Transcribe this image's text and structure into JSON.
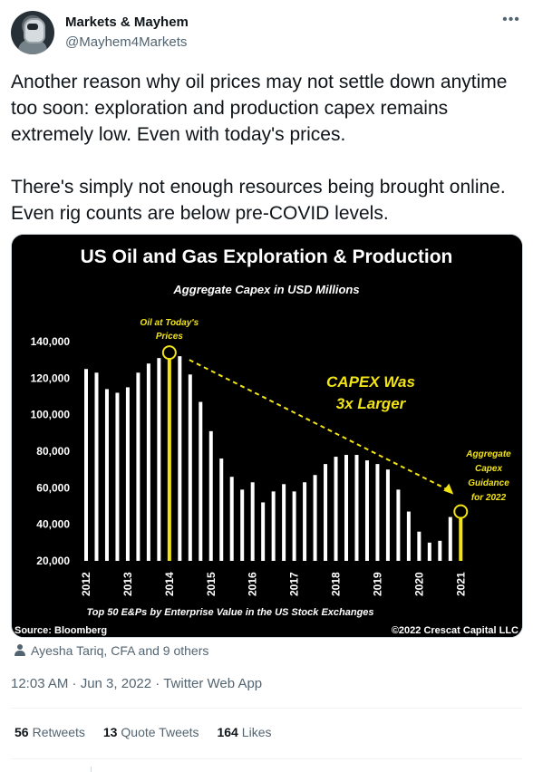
{
  "tweet": {
    "author": {
      "display_name": "Markets & Mayhem",
      "handle": "@Mayhem4Markets"
    },
    "more_icon": "ellipsis-icon",
    "text": "Another reason why oil prices may not settle down anytime too soon: exploration and production capex remains extremely low. Even with today's prices.\n\nThere's simply not enough resources being brought online. Even rig counts are below pre-COVID levels.",
    "tagged": "Ayesha Tariq, CFA and 9 others",
    "timestamp": "12:03 AM · Jun 3, 2022",
    "source": "Twitter Web App",
    "stats": {
      "retweets": {
        "count": "56",
        "label": "Retweets"
      },
      "quotes": {
        "count": "13",
        "label": "Quote Tweets"
      },
      "likes": {
        "count": "164",
        "label": "Likes"
      }
    }
  },
  "chart_data": {
    "type": "bar",
    "title": "US Oil and Gas Exploration & Production",
    "subtitle": "Aggregate Capex in USD Millions",
    "footer": "Top 50 E&Ps by Enterprise Value in the US Stock Exchanges",
    "source": "Source: Bloomberg",
    "copyright": "©2022 Crescat Capital LLC",
    "colors": {
      "bar": "#ffffff",
      "highlight": "#f2e414",
      "background": "#000000",
      "text": "#ffffff"
    },
    "ylim": [
      20000,
      140000
    ],
    "yticks": [
      "20,000",
      "40,000",
      "60,000",
      "80,000",
      "100,000",
      "120,000",
      "140,000"
    ],
    "ytick_values": [
      20000,
      40000,
      60000,
      80000,
      100000,
      120000,
      140000
    ],
    "xticks": [
      "2012",
      "2013",
      "2014",
      "2015",
      "2016",
      "2017",
      "2018",
      "2019",
      "2020",
      "2021"
    ],
    "quarters_per_year": 4,
    "values": [
      125000,
      123000,
      114000,
      112000,
      115000,
      123000,
      128000,
      131000,
      131000,
      132000,
      122000,
      107000,
      91000,
      76000,
      66000,
      59000,
      63000,
      52000,
      58000,
      62000,
      58000,
      63000,
      67000,
      73000,
      77000,
      78000,
      78000,
      75000,
      73000,
      70000,
      59000,
      47000,
      36000,
      30000,
      31000,
      44000,
      44000
    ],
    "highlight_indices": [
      8,
      36
    ],
    "annotations": {
      "peak_label": [
        "Oil at Today's",
        "Prices"
      ],
      "trend_label": [
        "CAPEX Was",
        "3x Larger"
      ],
      "end_label": [
        "Aggregate",
        "Capex",
        "Guidance",
        "for 2022"
      ]
    }
  }
}
